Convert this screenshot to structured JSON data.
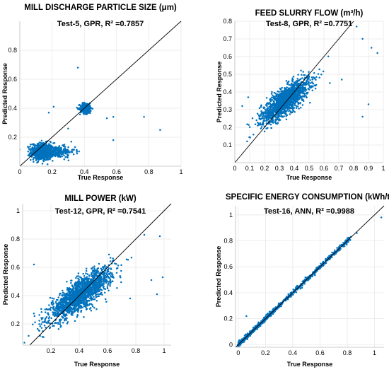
{
  "chart_data": [
    {
      "type": "scatter",
      "title": "MILL DISCHARGE PARTICLE SIZE (μm)",
      "subtitle": "Test-5, GPR, R² =0.7857",
      "xlabel": "True Response",
      "ylabel": "Predicted Response",
      "xlim": [
        0,
        1
      ],
      "ylim": [
        0,
        1
      ],
      "xticks": [
        "0",
        "0.2",
        "0.4",
        "0.6",
        "0.8",
        "1"
      ],
      "yticks": [
        "0.2",
        "0.4",
        "0.6",
        "0.8"
      ],
      "grid": true,
      "reference_line": "y = x",
      "marker_color": "#0072BD",
      "clusters": [
        {
          "cx": 0.14,
          "cy": 0.1,
          "sx": 0.035,
          "sy": 0.03,
          "n": 650
        },
        {
          "cx": 0.22,
          "cy": 0.1,
          "sx": 0.06,
          "sy": 0.02,
          "n": 250
        },
        {
          "cx": 0.41,
          "cy": 0.4,
          "sx": 0.018,
          "sy": 0.018,
          "n": 320
        }
      ],
      "outliers": [
        [
          0.36,
          0.68
        ],
        [
          0.21,
          0.41
        ],
        [
          0.77,
          0.34
        ],
        [
          0.87,
          0.25
        ],
        [
          0.58,
          0.18
        ],
        [
          0.58,
          0.34
        ],
        [
          0.54,
          0.33
        ],
        [
          0.3,
          0.26
        ],
        [
          0.18,
          0.37
        ]
      ]
    },
    {
      "type": "scatter",
      "title": "FEED SLURRY FLOW (m³/h)",
      "subtitle": "Test-8, GPR, R² =0.7751",
      "xlabel": "True Response",
      "ylabel": "Predicted Response",
      "xlim": [
        0,
        1
      ],
      "ylim": [
        0,
        0.8
      ],
      "xticks": [
        "0",
        "0.1",
        "0.2",
        "0.3",
        "0.4",
        "0.5",
        "0.6",
        "0.7",
        "0.8",
        "0.9",
        "1"
      ],
      "yticks": [
        "0.1",
        "0.2",
        "0.3",
        "0.4",
        "0.5",
        "0.6",
        "0.7",
        "0.8"
      ],
      "grid": true,
      "reference_line": "y = x",
      "marker_color": "#0072BD",
      "clusters": [
        {
          "cx": 0.34,
          "cy": 0.35,
          "sx": 0.08,
          "sy": 0.06,
          "corr": 0.78,
          "n": 1500
        }
      ],
      "outliers": [
        [
          0.82,
          0.77
        ],
        [
          0.86,
          0.7
        ],
        [
          0.92,
          0.65
        ],
        [
          0.96,
          0.62
        ],
        [
          0.86,
          0.26
        ],
        [
          0.9,
          0.33
        ],
        [
          0.72,
          0.47
        ],
        [
          0.64,
          0.45
        ],
        [
          0.09,
          0.37
        ],
        [
          0.05,
          0.32
        ]
      ]
    },
    {
      "type": "scatter",
      "title": "MILL POWER (kW)",
      "subtitle": "Test-12, GPR, R² =0.7541",
      "xlabel": "True Response",
      "ylabel": "Predicted Response",
      "xlim": [
        0,
        1.05
      ],
      "ylim": [
        0.05,
        1.05
      ],
      "xticks": [
        "0.2",
        "0.4",
        "0.6",
        "0.8",
        "1"
      ],
      "yticks": [
        "0.2",
        "0.4",
        "0.6",
        "0.8",
        "1"
      ],
      "grid": true,
      "reference_line": "y = x",
      "marker_color": "#0072BD",
      "clusters": [
        {
          "cx": 0.41,
          "cy": 0.41,
          "sx": 0.11,
          "sy": 0.09,
          "corr": 0.82,
          "n": 1700
        }
      ],
      "outliers": [
        [
          0.86,
          0.83
        ],
        [
          0.97,
          0.82
        ],
        [
          0.95,
          0.41
        ],
        [
          0.99,
          0.53
        ],
        [
          0.91,
          0.51
        ],
        [
          0.08,
          0.62
        ],
        [
          0.76,
          0.38
        ]
      ]
    },
    {
      "type": "scatter",
      "title": "SPECIFIC ENERGY CONSUMPTION (kWh/t)",
      "subtitle": "Test-16, ANN, R² =0.9988",
      "xlabel": "True Response",
      "ylabel": "Predicted Response",
      "xlim": [
        -0.02,
        1.07
      ],
      "ylim": [
        -0.02,
        1.07
      ],
      "xticks": [
        "0",
        "0.2",
        "0.4",
        "0.6",
        "0.8",
        "1"
      ],
      "yticks": [
        "0",
        "0.2",
        "0.4",
        "0.6",
        "0.8",
        "1"
      ],
      "grid": true,
      "reference_line": "y = x",
      "marker_color": "#0072BD",
      "diagonal_points": {
        "from": 0.0,
        "to": 0.82,
        "n": 800,
        "noise": 0.008
      },
      "outliers": [
        [
          0.87,
          0.86
        ],
        [
          1.05,
          0.98
        ],
        [
          0.06,
          0.22
        ],
        [
          0.04,
          0.02
        ]
      ]
    }
  ]
}
